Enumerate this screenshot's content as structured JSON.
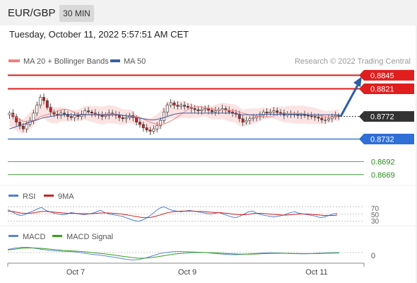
{
  "header": {
    "pair": "EUR/GBP",
    "timeframe": "30 MIN",
    "datetime": "Tuesday, October 11, 2022 5:57:51 AM CET"
  },
  "colors": {
    "resistance": "#e01e1e",
    "support_blue": "#2f6fd6",
    "support_green": "#2a8a1e",
    "current": "#333333",
    "bollinger_band": "#fbdada",
    "ma20": "#f08080",
    "ma50": "#3a5fa0",
    "candle_up": "#ffffff",
    "candle_down": "#d11f1f",
    "arrow": "#2d5fa3",
    "rsi": "#4f7fd8",
    "rsi_ma": "#d22020",
    "macd": "#5b86de",
    "macd_signal": "#3aa01e"
  },
  "chart_data": [
    {
      "type": "candlestick",
      "legend": [
        {
          "label": "MA 20 + Bollinger Bands",
          "color": "#f08080"
        },
        {
          "label": "MA 50",
          "color": "#3a5fa0"
        }
      ],
      "credit": "Research © 2022 Trading Central",
      "ylim": [
        0.8655,
        0.8858
      ],
      "x_labels": [
        "Oct 7",
        "Oct 9",
        "Oct 11"
      ],
      "levels": [
        {
          "value": 0.8845,
          "label": "0.8845",
          "kind": "resistance"
        },
        {
          "value": 0.8821,
          "label": "0.8821",
          "kind": "resistance"
        },
        {
          "value": 0.8772,
          "label": "0.8772",
          "kind": "current"
        },
        {
          "value": 0.8732,
          "label": "0.8732",
          "kind": "support_blue"
        },
        {
          "value": 0.8692,
          "label": "0.8692",
          "kind": "support_green"
        },
        {
          "value": 0.8669,
          "label": "0.8669",
          "kind": "support_green"
        }
      ],
      "close": [
        0.8778,
        0.8772,
        0.8762,
        0.8755,
        0.875,
        0.8758,
        0.8765,
        0.8778,
        0.8792,
        0.8806,
        0.88,
        0.8788,
        0.878,
        0.8776,
        0.8774,
        0.8778,
        0.8776,
        0.8772,
        0.877,
        0.8774,
        0.8772,
        0.8776,
        0.8782,
        0.878,
        0.8778,
        0.8776,
        0.8774,
        0.8772,
        0.8774,
        0.8778,
        0.8776,
        0.8774,
        0.877,
        0.8768,
        0.877,
        0.8774,
        0.877,
        0.8762,
        0.8758,
        0.8752,
        0.8748,
        0.8746,
        0.875,
        0.8756,
        0.8765,
        0.878,
        0.8792,
        0.8796,
        0.8792,
        0.879,
        0.8792,
        0.879,
        0.8788,
        0.8786,
        0.8784,
        0.8782,
        0.8784,
        0.8786,
        0.8783,
        0.878,
        0.8782,
        0.8784,
        0.8786,
        0.8783,
        0.878,
        0.8778,
        0.8776,
        0.8768,
        0.8762,
        0.8765,
        0.8768,
        0.877,
        0.8772,
        0.8774,
        0.878,
        0.8778,
        0.878,
        0.8782,
        0.8779,
        0.8778,
        0.8774,
        0.8776,
        0.8776,
        0.8775,
        0.8774,
        0.8775,
        0.8774,
        0.8773,
        0.8772,
        0.8771,
        0.8769,
        0.8766,
        0.8766,
        0.8768,
        0.8772,
        0.8774,
        0.8772
      ],
      "ma50": [
        0.875,
        0.8752,
        0.8754,
        0.8756,
        0.8758,
        0.876,
        0.8762,
        0.8764,
        0.8766,
        0.8768,
        0.877,
        0.8771,
        0.8772,
        0.8773,
        0.8774,
        0.8775,
        0.8775,
        0.8775,
        0.8775,
        0.8775,
        0.8775,
        0.8775,
        0.8775,
        0.8775,
        0.8775,
        0.8775,
        0.8775,
        0.8775,
        0.8775,
        0.8775,
        0.8775,
        0.8775,
        0.8775,
        0.8774,
        0.8773,
        0.8772,
        0.8771,
        0.877,
        0.8769,
        0.8768,
        0.8767,
        0.8766,
        0.8766,
        0.8767,
        0.8768,
        0.877,
        0.8772,
        0.8774,
        0.8776,
        0.8777,
        0.8778,
        0.8778,
        0.8778,
        0.8778,
        0.8778,
        0.8778,
        0.8778,
        0.8778,
        0.8778,
        0.8778,
        0.8778,
        0.8778,
        0.8778,
        0.8778,
        0.8778,
        0.8778,
        0.8777,
        0.8776,
        0.8775,
        0.8775,
        0.8775,
        0.8775,
        0.8775,
        0.8776,
        0.8776,
        0.8776,
        0.8776,
        0.8776,
        0.8776,
        0.8776,
        0.8776,
        0.8776,
        0.8776,
        0.8776,
        0.8776,
        0.8776,
        0.8776,
        0.8775,
        0.8775,
        0.8775,
        0.8775,
        0.8775,
        0.8775,
        0.8775,
        0.8775,
        0.8775,
        0.8775
      ]
    },
    {
      "type": "line",
      "legend": [
        {
          "label": "RSI",
          "color": "#4f7fd8"
        },
        {
          "label": "9MA",
          "color": "#d22020"
        }
      ],
      "ylim": [
        20,
        80
      ],
      "levels": [
        70,
        50,
        30
      ],
      "level_labels": [
        "70",
        "50",
        "30"
      ],
      "series": [
        {
          "name": "RSI",
          "values": [
            62,
            56,
            50,
            46,
            48,
            54,
            58,
            64,
            68,
            60,
            56,
            52,
            50,
            48,
            50,
            54,
            52,
            50,
            48,
            50,
            52,
            56,
            60,
            54,
            50,
            48,
            46,
            44,
            40,
            36,
            32,
            30,
            34,
            40,
            48,
            58,
            66,
            70,
            64,
            60,
            58,
            56,
            58,
            60,
            58,
            56,
            54,
            52,
            50,
            52,
            54,
            50,
            46,
            42,
            40,
            44,
            50,
            56,
            58,
            52,
            48,
            46,
            44,
            42,
            44,
            46,
            50,
            54,
            56,
            52,
            50,
            48,
            46,
            44,
            40,
            42,
            46,
            50,
            52
          ]
        },
        {
          "name": "9MA",
          "values": [
            58,
            57,
            55,
            53,
            52,
            52,
            53,
            55,
            57,
            57,
            56,
            55,
            54,
            53,
            52,
            52,
            52,
            51,
            51,
            51,
            51,
            52,
            53,
            53,
            53,
            52,
            51,
            50,
            48,
            46,
            44,
            42,
            40,
            40,
            41,
            44,
            47,
            51,
            54,
            56,
            57,
            58,
            58,
            58,
            58,
            57,
            57,
            56,
            55,
            54,
            54,
            53,
            52,
            50,
            49,
            48,
            48,
            49,
            51,
            52,
            52,
            51,
            50,
            49,
            48,
            47,
            47,
            48,
            49,
            50,
            50,
            50,
            49,
            48,
            47,
            46,
            46,
            46,
            47
          ]
        }
      ]
    },
    {
      "type": "line",
      "legend": [
        {
          "label": "MACD",
          "color": "#5b86de"
        },
        {
          "label": "MACD Signal",
          "color": "#3aa01e"
        }
      ],
      "ylim": [
        -1,
        1
      ],
      "levels": [
        0
      ],
      "level_labels": [
        "0"
      ],
      "series": [
        {
          "name": "MACD",
          "values": [
            0.3,
            0.42,
            0.5,
            0.48,
            0.4,
            0.3,
            0.22,
            0.16,
            0.12,
            0.1,
            0.05,
            -0.05,
            -0.15,
            -0.22,
            -0.3,
            -0.4,
            -0.5,
            -0.62,
            -0.7,
            -0.66,
            -0.5,
            -0.3,
            -0.1,
            0.02,
            0.08,
            0.1,
            0.08,
            0.05,
            0.02,
            -0.02,
            -0.08,
            -0.14,
            -0.18,
            -0.2,
            -0.17,
            -0.12,
            -0.08,
            -0.04,
            -0.02,
            -0.03,
            -0.06,
            -0.09,
            -0.11,
            -0.12,
            -0.1,
            -0.06,
            -0.03,
            -0.01,
            0.0
          ]
        },
        {
          "name": "MACD Signal",
          "values": [
            0.24,
            0.32,
            0.4,
            0.44,
            0.43,
            0.39,
            0.33,
            0.27,
            0.21,
            0.17,
            0.13,
            0.08,
            0.02,
            -0.05,
            -0.12,
            -0.2,
            -0.29,
            -0.38,
            -0.47,
            -0.53,
            -0.52,
            -0.46,
            -0.36,
            -0.25,
            -0.15,
            -0.08,
            -0.03,
            0.0,
            0.01,
            0.0,
            -0.02,
            -0.06,
            -0.1,
            -0.13,
            -0.15,
            -0.15,
            -0.13,
            -0.1,
            -0.08,
            -0.07,
            -0.07,
            -0.08,
            -0.09,
            -0.1,
            -0.1,
            -0.09,
            -0.07,
            -0.05,
            -0.03
          ]
        }
      ]
    }
  ]
}
